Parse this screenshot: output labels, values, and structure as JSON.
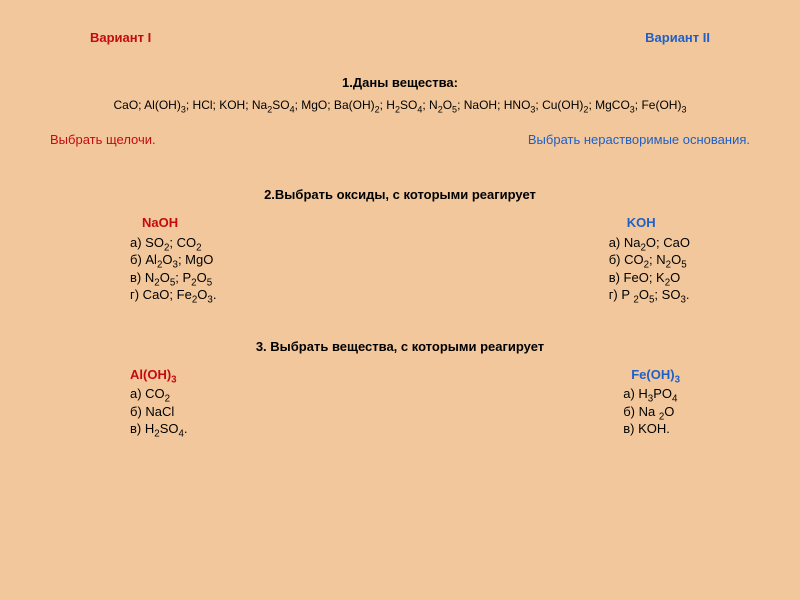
{
  "header": {
    "variant1": "Вариант I",
    "variant2": "Вариант II"
  },
  "q1": {
    "title": "1.Даны вещества:",
    "substances": "CaO; Al(OH)₃; HCl; KOH; Na₂SO₄; MgO; Ba(OH)₂; H₂SO₄; N₂O₅; NaOH; HNO₃; Cu(OH)₂; MgCO₃; Fe(OH)₃",
    "choose1": "Выбрать щелочи.",
    "choose2": "Выбрать нерастворимые  основания."
  },
  "q2": {
    "title": "2.Выбрать оксиды, с которыми реагирует",
    "left": {
      "header": "NaOH",
      "a": "а) SO₂; CO₂",
      "b": "б) Al₂O₃; MgO",
      "v": "в) N₂O₅; P₂O₅",
      "g": "г) CaO; Fe₂O₃."
    },
    "right": {
      "header": "KOH",
      "a": "а) Na₂O; CaO",
      "b": "б) CO₂; N₂O₅",
      "v": "в) FeO; K₂O",
      "g": "г) P ₂O₅; SO₃."
    }
  },
  "q3": {
    "title": "3. Выбрать вещества, с которыми реагирует",
    "left": {
      "header": "Al(OH)₃",
      "a": "а) CO₂",
      "b": "б) NaCl",
      "v": "в) H₂SO₄."
    },
    "right": {
      "header": "Fe(OH)₃",
      "a": "а) H₃PO₄",
      "b": "б) Na ₂O",
      "v": "в) KOH."
    }
  }
}
